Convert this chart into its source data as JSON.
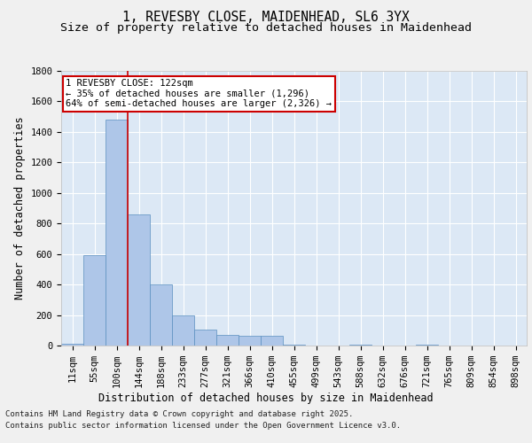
{
  "title_line1": "1, REVESBY CLOSE, MAIDENHEAD, SL6 3YX",
  "title_line2": "Size of property relative to detached houses in Maidenhead",
  "xlabel": "Distribution of detached houses by size in Maidenhead",
  "ylabel": "Number of detached properties",
  "categories": [
    "11sqm",
    "55sqm",
    "100sqm",
    "144sqm",
    "188sqm",
    "233sqm",
    "277sqm",
    "321sqm",
    "366sqm",
    "410sqm",
    "455sqm",
    "499sqm",
    "543sqm",
    "588sqm",
    "632sqm",
    "676sqm",
    "721sqm",
    "765sqm",
    "809sqm",
    "854sqm",
    "898sqm"
  ],
  "values": [
    10,
    590,
    1480,
    860,
    400,
    200,
    105,
    70,
    65,
    65,
    5,
    0,
    0,
    5,
    0,
    0,
    5,
    0,
    0,
    0,
    0
  ],
  "bar_color": "#aec6e8",
  "bar_edge_color": "#5a8fc0",
  "bg_color": "#dce8f5",
  "grid_color": "#ffffff",
  "annotation_text": "1 REVESBY CLOSE: 122sqm\n← 35% of detached houses are smaller (1,296)\n64% of semi-detached houses are larger (2,326) →",
  "annotation_box_color": "#cc0000",
  "ylim": [
    0,
    1800
  ],
  "yticks": [
    0,
    200,
    400,
    600,
    800,
    1000,
    1200,
    1400,
    1600,
    1800
  ],
  "footer_line1": "Contains HM Land Registry data © Crown copyright and database right 2025.",
  "footer_line2": "Contains public sector information licensed under the Open Government Licence v3.0.",
  "title_fontsize": 10.5,
  "subtitle_fontsize": 9.5,
  "axis_label_fontsize": 8.5,
  "tick_fontsize": 7.5,
  "annotation_fontsize": 7.5,
  "footer_fontsize": 6.5,
  "fig_bg_color": "#f0f0f0"
}
